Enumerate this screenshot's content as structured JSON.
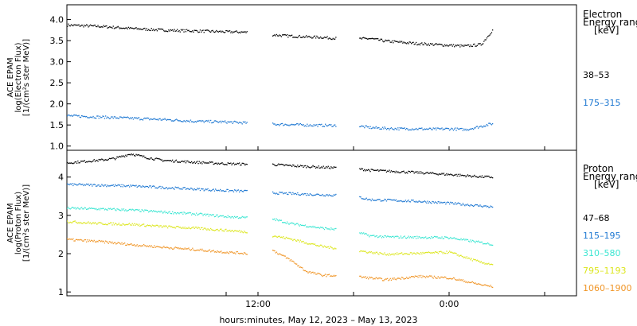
{
  "chart_data": [
    {
      "type": "scatter",
      "panel": "electron",
      "ylabel_lines": [
        "ACE EPAM",
        "log(Electron Flux)",
        "[1/(cm²s ster MeV)]"
      ],
      "ylim": [
        0.9,
        4.35
      ],
      "yticks": [
        1.0,
        1.5,
        2.0,
        2.5,
        3.0,
        3.5,
        4.0
      ],
      "ytick_labels": [
        "1.0",
        "1.5",
        "2.0",
        "2.5",
        "3.0",
        "3.5",
        "4.0"
      ],
      "legend_title": [
        "Electron",
        "Energy range",
        "[keV]"
      ],
      "series": [
        {
          "name": "38–53",
          "color": "#000000",
          "x": [
            0,
            2,
            4,
            6,
            8,
            10,
            11.3,
            12.9,
            13.5,
            14,
            15,
            16,
            17,
            18,
            19,
            20,
            21,
            22,
            23,
            24,
            25,
            26,
            26.75
          ],
          "y": [
            3.88,
            3.85,
            3.8,
            3.76,
            3.74,
            3.72,
            3.71,
            3.65,
            3.63,
            3.62,
            3.6,
            3.59,
            3.56,
            3.55,
            3.56,
            3.5,
            3.47,
            3.44,
            3.42,
            3.4,
            3.38,
            3.42,
            3.78
          ]
        },
        {
          "name": "175–315",
          "color": "#1e78d2",
          "x": [
            0,
            2,
            4,
            6,
            8,
            10,
            11.3,
            12.9,
            14,
            16,
            18,
            19,
            20,
            21,
            22,
            23,
            24,
            25,
            26,
            26.75
          ],
          "y": [
            1.73,
            1.7,
            1.67,
            1.64,
            1.6,
            1.58,
            1.56,
            1.53,
            1.52,
            1.5,
            1.5,
            1.45,
            1.43,
            1.42,
            1.42,
            1.41,
            1.42,
            1.4,
            1.48,
            1.55
          ]
        }
      ]
    },
    {
      "type": "scatter",
      "panel": "proton",
      "ylabel_lines": [
        "ACE EPAM",
        "log(Proton Flux)",
        "[1/(cm²s ster MeV)]"
      ],
      "ylim": [
        0.9,
        4.7
      ],
      "yticks": [
        1,
        2,
        3,
        4
      ],
      "ytick_labels": [
        "1",
        "2",
        "3",
        "4"
      ],
      "legend_title": [
        "Proton",
        "Energy range",
        "[keV]"
      ],
      "series": [
        {
          "name": "47–68",
          "color": "#000000",
          "x": [
            0,
            1,
            2,
            3,
            4,
            5,
            6,
            8,
            10,
            11.3,
            12.9,
            14,
            16,
            18,
            19,
            20,
            22,
            24,
            26,
            26.75
          ],
          "y": [
            4.38,
            4.42,
            4.45,
            4.5,
            4.62,
            4.52,
            4.45,
            4.4,
            4.36,
            4.35,
            4.34,
            4.31,
            4.27,
            4.24,
            4.19,
            4.17,
            4.13,
            4.08,
            4.02,
            4.01
          ]
        },
        {
          "name": "115–195",
          "color": "#1e78d2",
          "x": [
            0,
            2,
            4,
            6,
            8,
            10,
            11.3,
            12.9,
            14,
            16,
            18,
            19,
            20,
            22,
            24,
            26,
            26.75
          ],
          "y": [
            3.82,
            3.8,
            3.78,
            3.74,
            3.7,
            3.66,
            3.64,
            3.6,
            3.58,
            3.55,
            3.52,
            3.42,
            3.41,
            3.38,
            3.33,
            3.26,
            3.23
          ]
        },
        {
          "name": "310–580",
          "color": "#3ce6d2",
          "x": [
            0,
            2,
            4,
            6,
            8,
            10,
            11.3,
            12.9,
            14,
            16,
            18,
            19,
            20,
            22,
            24,
            26,
            26.75
          ],
          "y": [
            3.2,
            3.18,
            3.15,
            3.1,
            3.05,
            2.98,
            2.95,
            2.92,
            2.8,
            2.68,
            2.6,
            2.48,
            2.45,
            2.44,
            2.43,
            2.3,
            2.25
          ]
        },
        {
          "name": "795–1193",
          "color": "#dce61e",
          "x": [
            0,
            2,
            4,
            6,
            8,
            10,
            11.3,
            12.9,
            14,
            16,
            18,
            19,
            20,
            22,
            24,
            26,
            26.75
          ],
          "y": [
            2.85,
            2.8,
            2.78,
            2.72,
            2.68,
            2.62,
            2.58,
            2.48,
            2.4,
            2.2,
            2.1,
            2.05,
            2.0,
            2.02,
            2.05,
            1.78,
            1.73
          ]
        },
        {
          "name": "1060–1900",
          "color": "#f09628",
          "x": [
            0,
            2,
            4,
            6,
            8,
            10,
            11.3,
            12.9,
            14,
            15,
            16,
            18,
            19,
            20,
            22,
            24,
            26,
            26.75
          ],
          "y": [
            2.38,
            2.33,
            2.25,
            2.18,
            2.12,
            2.05,
            2.02,
            2.1,
            1.85,
            1.55,
            1.45,
            1.42,
            1.38,
            1.33,
            1.42,
            1.38,
            1.2,
            1.15
          ]
        }
      ]
    }
  ],
  "x_axis": {
    "xlim": [
      0,
      32
    ],
    "ticks": [
      10,
      12,
      18,
      24,
      30
    ],
    "tick_labels": [
      {
        "x": 12,
        "label": "12:00"
      },
      {
        "x": 24,
        "label": "0:00"
      }
    ],
    "gap": [
      11.3,
      12.9
    ],
    "gap2": [
      16.9,
      18.3
    ],
    "xlabel": "hours:minutes, May 12, 2023 – May 13, 2023"
  }
}
